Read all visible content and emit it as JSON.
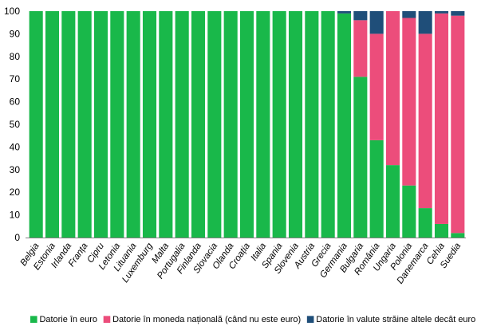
{
  "colors": {
    "euro": "#19b84a",
    "national": "#ec4d7b",
    "foreign": "#1f4e79",
    "axis": "#808080"
  },
  "chart_data": {
    "type": "bar",
    "stacked": true,
    "title": "",
    "xlabel": "",
    "ylabel": "",
    "ylim": [
      0,
      100
    ],
    "yticks": [
      0,
      10,
      20,
      30,
      40,
      50,
      60,
      70,
      80,
      90,
      100
    ],
    "grid": false,
    "legend_position": "bottom",
    "categories": [
      "Belgia",
      "Estonia",
      "Irlanda",
      "Franța",
      "Cipru",
      "Letonia",
      "Lituania",
      "Luxemburg",
      "Malta",
      "Portugalia",
      "Finlanda",
      "Slovacia",
      "Olanda",
      "Croația",
      "Italia",
      "Spania",
      "Slovenia",
      "Austria",
      "Grecia",
      "Germania",
      "Bulgaria",
      "România",
      "Ungaria",
      "Polonia",
      "Danemarca",
      "Cehia",
      "Suedia"
    ],
    "series": [
      {
        "name": "Datorie în euro",
        "color_key": "euro",
        "values": [
          100,
          100,
          100,
          100,
          100,
          100,
          100,
          100,
          100,
          100,
          100,
          100,
          100,
          100,
          100,
          100,
          100,
          100,
          100,
          99,
          71,
          43,
          32,
          23,
          13,
          6,
          2
        ]
      },
      {
        "name": "Datorie în moneda națională (când nu este euro)",
        "color_key": "national",
        "values": [
          0,
          0,
          0,
          0,
          0,
          0,
          0,
          0,
          0,
          0,
          0,
          0,
          0,
          0,
          0,
          0,
          0,
          0,
          0,
          0,
          25,
          47,
          68,
          74,
          77,
          93,
          96
        ]
      },
      {
        "name": "Datorie în valute străine altele decât euro",
        "color_key": "foreign",
        "values": [
          0,
          0,
          0,
          0,
          0,
          0,
          0,
          0,
          0,
          0,
          0,
          0,
          0,
          0,
          0,
          0,
          0,
          0,
          0,
          1,
          4,
          10,
          0,
          3,
          10,
          1,
          2
        ]
      }
    ]
  }
}
